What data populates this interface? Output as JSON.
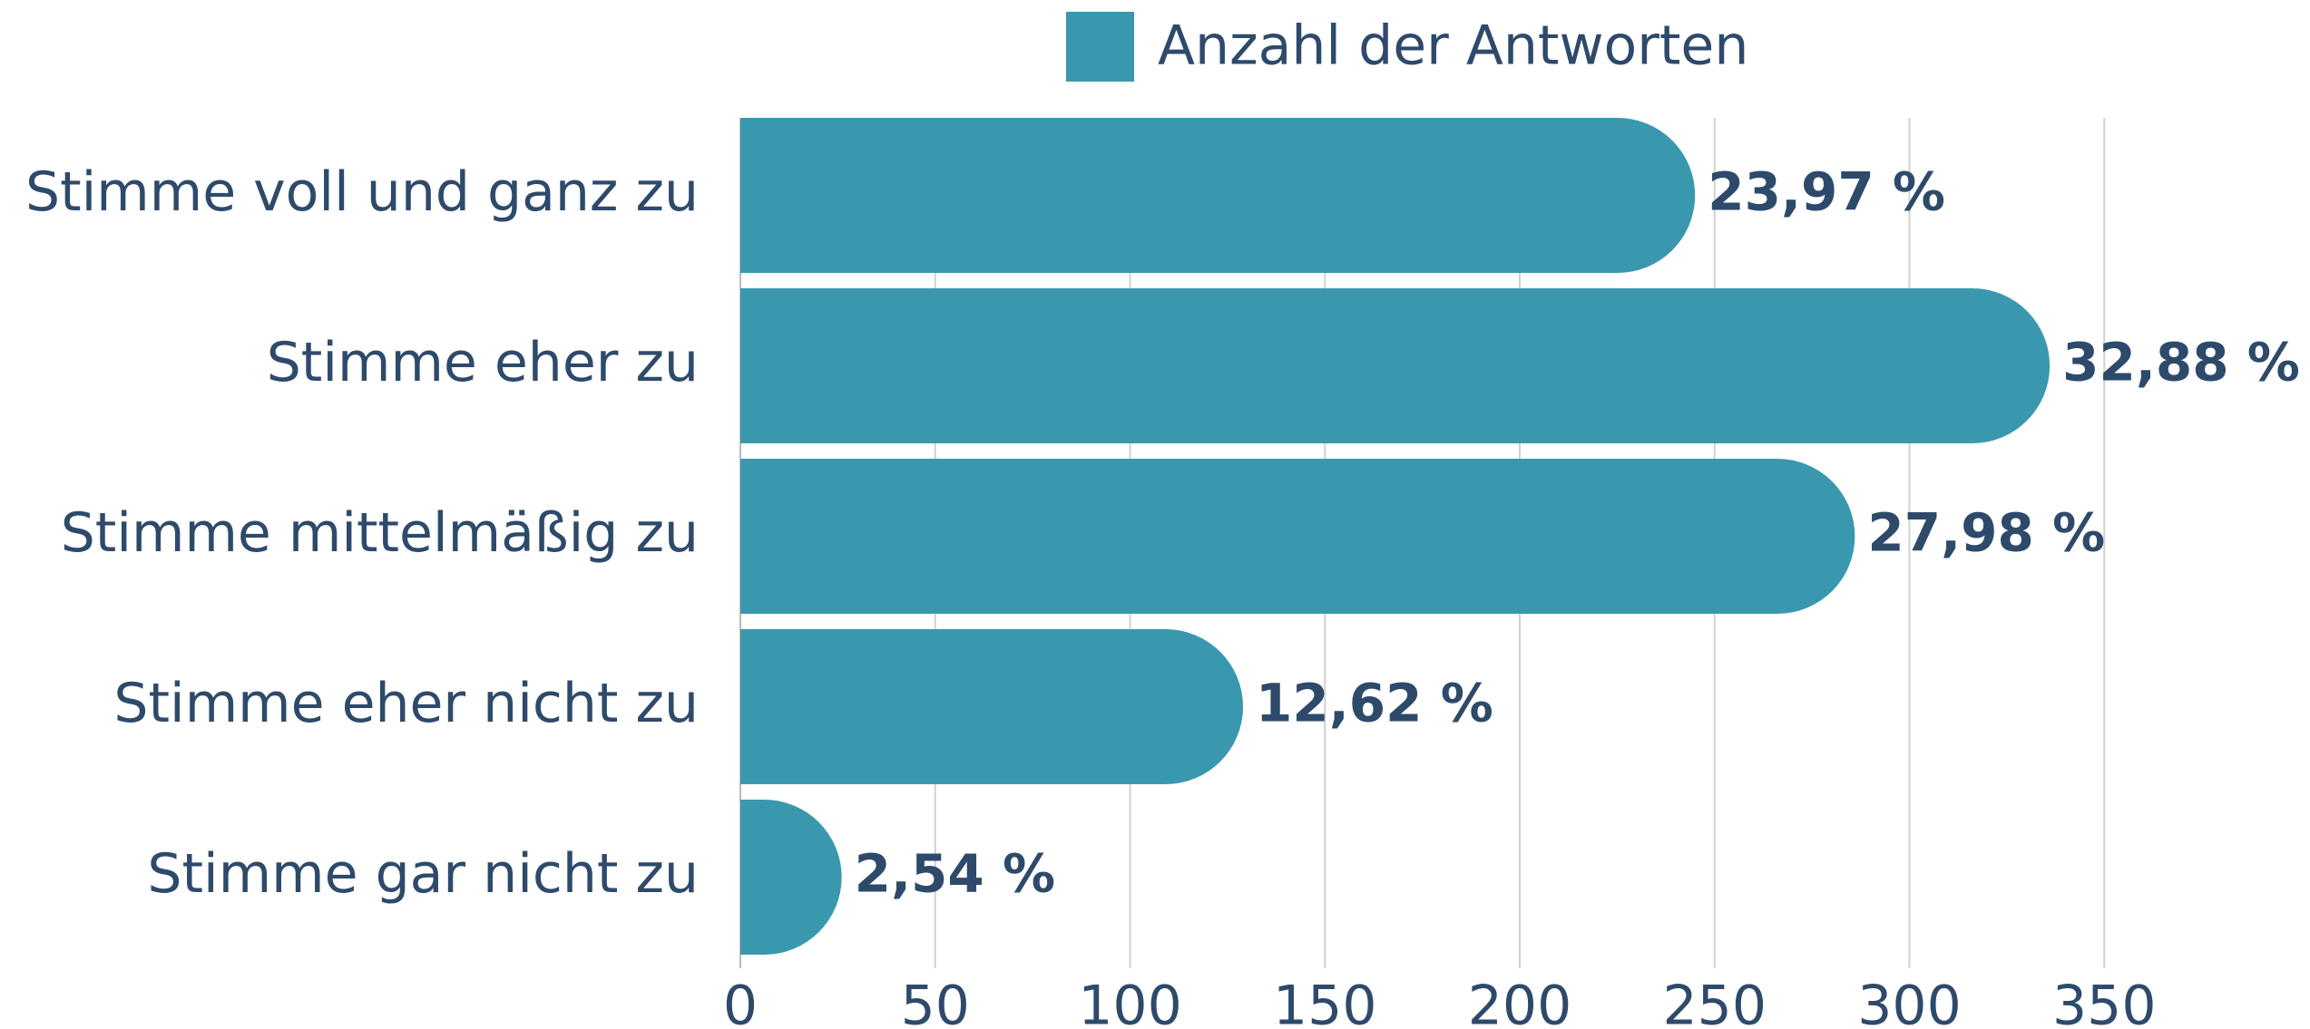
{
  "chart_data": {
    "type": "bar",
    "orientation": "horizontal",
    "legend": "Anzahl der Antworten",
    "legend_position": "top",
    "categories": [
      "Stimme voll und ganz zu",
      "Stimme eher zu",
      "Stimme mittelmäßig zu",
      "Stimme eher nicht zu",
      "Stimme gar nicht zu"
    ],
    "values": [
      245,
      336,
      286,
      129,
      26
    ],
    "value_labels": [
      "23,97 %",
      "32,88 %",
      "27,98 %",
      "12,62 %",
      "2,54 %"
    ],
    "color": "#3a98ae",
    "xlim": [
      0,
      400
    ],
    "xticks": [
      0,
      50,
      100,
      150,
      200,
      250,
      300,
      350
    ],
    "grid": true
  }
}
